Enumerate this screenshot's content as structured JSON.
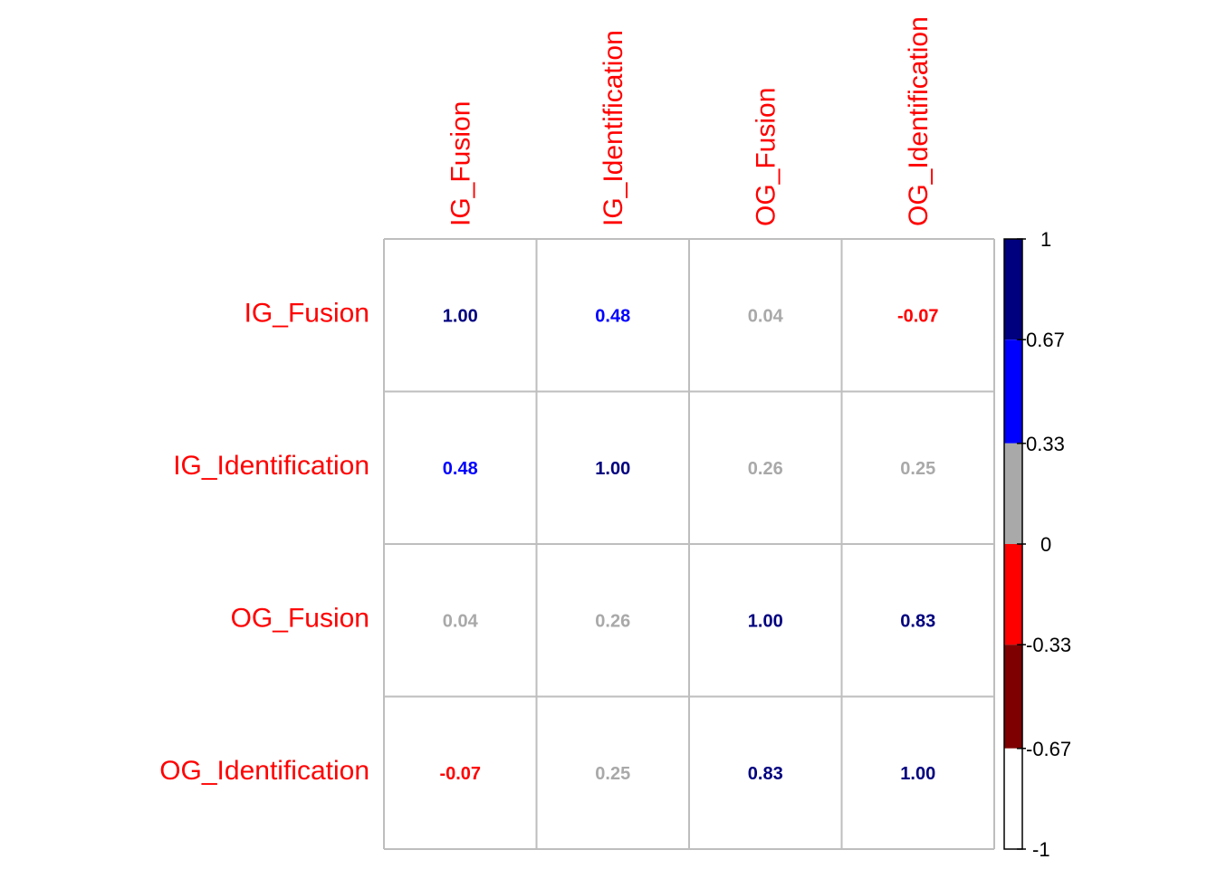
{
  "chart_data": {
    "type": "heatmap",
    "variables": [
      "IG_Fusion",
      "IG_Identification",
      "OG_Fusion",
      "OG_Identification"
    ],
    "matrix": [
      [
        1.0,
        0.48,
        0.04,
        -0.07
      ],
      [
        0.48,
        1.0,
        0.26,
        0.25
      ],
      [
        0.04,
        0.26,
        1.0,
        0.83
      ],
      [
        -0.07,
        0.25,
        0.83,
        1.0
      ]
    ],
    "cell_labels": [
      [
        "1.00",
        "0.48",
        "0.04",
        "-0.07"
      ],
      [
        "0.48",
        "1.00",
        "0.26",
        "0.25"
      ],
      [
        "0.04",
        "0.26",
        "1.00",
        "0.83"
      ],
      [
        "-0.07",
        "0.25",
        "0.83",
        "1.00"
      ]
    ],
    "legend": {
      "range": [
        -1,
        1
      ],
      "ticks": [
        1,
        0.67,
        0.33,
        0,
        -0.33,
        -0.67,
        -1
      ],
      "tick_labels": [
        "1",
        "0.67",
        "0.33",
        "0",
        "-0.33",
        "-0.67",
        "-1"
      ],
      "bins": [
        {
          "from": 0.67,
          "to": 1,
          "color": "#00007F"
        },
        {
          "from": 0.33,
          "to": 0.67,
          "color": "#0000FF"
        },
        {
          "from": 0,
          "to": 0.33,
          "color": "#A9A9A9"
        },
        {
          "from": -0.33,
          "to": 0,
          "color": "#FF0000"
        },
        {
          "from": -0.67,
          "to": -0.33,
          "color": "#7F0000"
        },
        {
          "from": -1,
          "to": -0.67,
          "color": "#FFFFFF"
        }
      ]
    },
    "label_color": "#FF0000",
    "grid_color": "#BEBEBE"
  }
}
